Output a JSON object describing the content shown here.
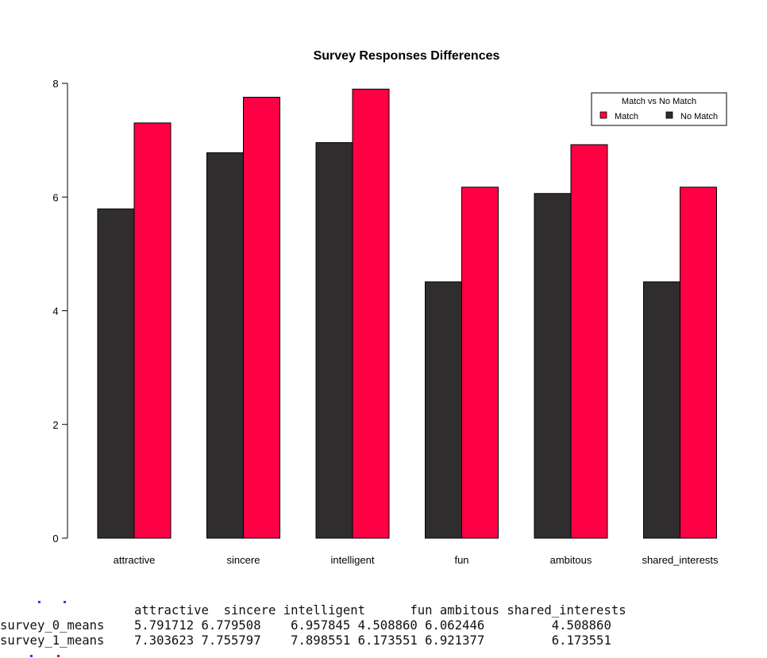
{
  "chart_data": {
    "type": "bar",
    "title": "Survey Responses Differences",
    "xlabel": "",
    "ylabel": "",
    "categories": [
      "attractive",
      "sincere",
      "intelligent",
      "fun",
      "ambitous",
      "shared_interests"
    ],
    "series": [
      {
        "name": "No Match",
        "color": "#302d2f",
        "values": [
          5.791712,
          6.779508,
          6.957845,
          4.50886,
          6.062446,
          4.50886
        ]
      },
      {
        "name": "Match",
        "color": "#ff0045",
        "values": [
          7.303623,
          7.755797,
          7.898551,
          6.173551,
          6.921377,
          6.173551
        ]
      }
    ],
    "ylim": [
      0,
      8
    ],
    "yticks": [
      0,
      2,
      4,
      6,
      8
    ],
    "grid": false,
    "legend": {
      "title": "Match vs No Match",
      "placement": "top-right",
      "entries": [
        "Match",
        "No Match"
      ]
    }
  },
  "console": {
    "header": "                  attractive  sincere intelligent      fun ambitous shared_interests",
    "row0": "survey_0_means    5.791712 6.779508    6.957845 4.508860 6.062446         4.508860",
    "row1": "survey_1_means    7.303623 7.755797    7.898551 6.173551 6.921377         6.173551"
  }
}
